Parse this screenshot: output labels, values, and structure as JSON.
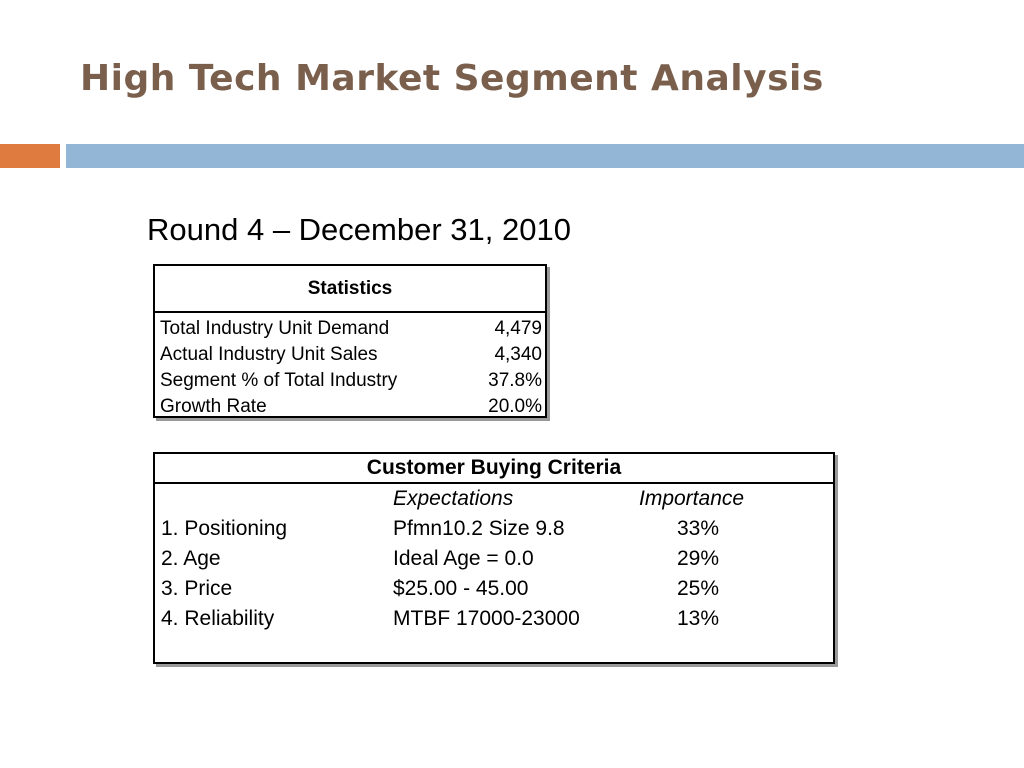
{
  "slide": {
    "title": "High Tech Market Segment Analysis",
    "subtitle": "Round 4 – December 31, 2010"
  },
  "statistics": {
    "header": "Statistics",
    "rows": [
      {
        "label": "Total Industry Unit Demand",
        "value": "4,479"
      },
      {
        "label": "Actual Industry Unit Sales",
        "value": "4,340"
      },
      {
        "label": "Segment % of Total Industry",
        "value": "37.8%"
      },
      {
        "label": "Growth Rate",
        "value": "20.0%"
      }
    ]
  },
  "criteria": {
    "header": "Customer Buying Criteria",
    "col_expectations": "Expectations",
    "col_importance": "Importance",
    "rows": [
      {
        "criterion": "1. Positioning",
        "expectation": "Pfmn10.2 Size 9.8",
        "importance": "33%"
      },
      {
        "criterion": "2. Age",
        "expectation": "Ideal Age = 0.0",
        "importance": "29%"
      },
      {
        "criterion": "3. Price",
        "expectation": "$25.00 - 45.00",
        "importance": "25%"
      },
      {
        "criterion": "4. Reliability",
        "expectation": "MTBF 17000-23000",
        "importance": "13%"
      }
    ]
  },
  "colors": {
    "title": "#7a5f4d",
    "accent_orange": "#e07b3f",
    "accent_blue": "#93b6d6"
  }
}
